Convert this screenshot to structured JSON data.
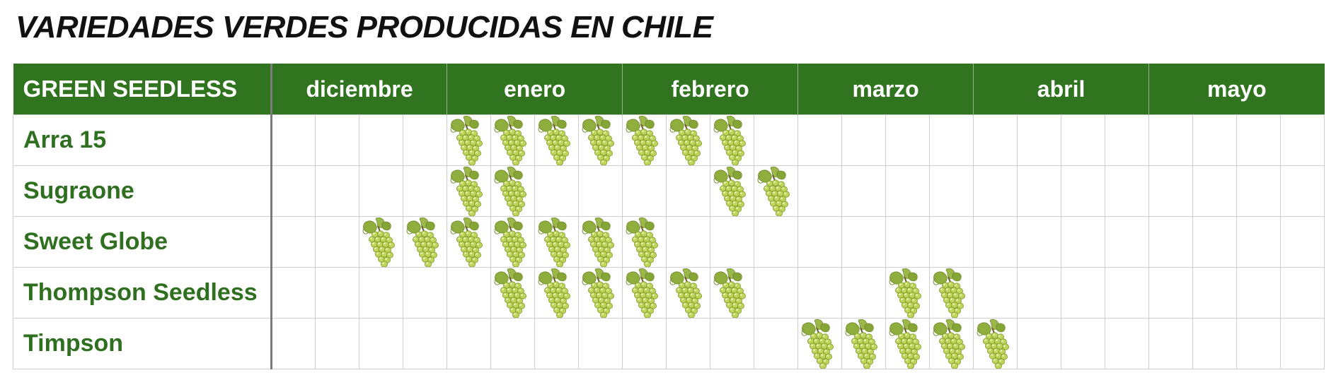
{
  "title": "VARIEDADES VERDES PRODUCIDAS EN CHILE",
  "header": {
    "corner": "GREEN SEEDLESS",
    "months": [
      "diciembre",
      "enero",
      "febrero",
      "marzo",
      "abril",
      "mayo"
    ]
  },
  "icon": "grape-bunch-icon",
  "colors": {
    "header_bg": "#31741f",
    "variety_text": "#2f6f20",
    "grape": "#b9cf55"
  },
  "rows": [
    {
      "name": "Arra 15",
      "weeks": [
        0,
        0,
        0,
        0,
        1,
        1,
        1,
        1,
        1,
        1,
        1,
        0,
        0,
        0,
        0,
        0,
        0,
        0,
        0,
        0,
        0,
        0,
        0,
        0
      ]
    },
    {
      "name": "Sugraone",
      "weeks": [
        0,
        0,
        0,
        0,
        1,
        1,
        0,
        0,
        0,
        0,
        1,
        1,
        0,
        0,
        0,
        0,
        0,
        0,
        0,
        0,
        0,
        0,
        0,
        0
      ]
    },
    {
      "name": "Sweet Globe",
      "weeks": [
        0,
        0,
        1,
        1,
        1,
        1,
        1,
        1,
        1,
        0,
        0,
        0,
        0,
        0,
        0,
        0,
        0,
        0,
        0,
        0,
        0,
        0,
        0,
        0
      ]
    },
    {
      "name": "Thompson Seedless",
      "weeks": [
        0,
        0,
        0,
        0,
        0,
        1,
        1,
        1,
        1,
        1,
        1,
        0,
        0,
        0,
        1,
        1,
        0,
        0,
        0,
        0,
        0,
        0,
        0,
        0
      ]
    },
    {
      "name": "Timpson",
      "weeks": [
        0,
        0,
        0,
        0,
        0,
        0,
        0,
        0,
        0,
        0,
        0,
        0,
        1,
        1,
        1,
        1,
        1,
        0,
        0,
        0,
        0,
        0,
        0,
        0
      ]
    }
  ]
}
